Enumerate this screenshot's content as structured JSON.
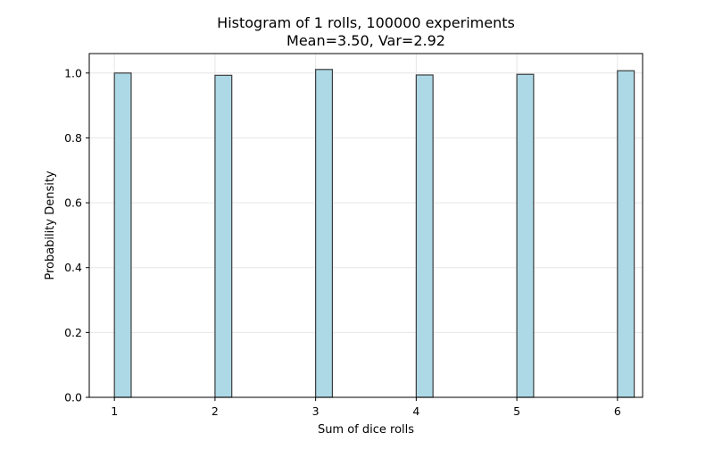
{
  "chart_data": {
    "type": "bar",
    "title_line1": "Histogram of 1 rolls, 100000 experiments",
    "title_line2": "Mean=3.50, Var=2.92",
    "xlabel": "Sum of dice rolls",
    "ylabel": "Probability Density",
    "xlim": [
      0.75,
      6.25
    ],
    "ylim": [
      0,
      1.06
    ],
    "xticks": [
      "1",
      "2",
      "3",
      "4",
      "5",
      "6"
    ],
    "yticks": [
      "0.0",
      "0.2",
      "0.4",
      "0.6",
      "0.8",
      "1.0"
    ],
    "grid": true,
    "bar_width": 0.1667,
    "categories": [
      1,
      2,
      3,
      4,
      5,
      6
    ],
    "values": [
      1.0,
      0.993,
      1.011,
      0.994,
      0.996,
      1.007
    ],
    "colors": {
      "bar_fill": "#add8e6",
      "bar_edge": "#3d3d3d",
      "grid": "#e6e6e6",
      "axis": "#000000"
    }
  }
}
